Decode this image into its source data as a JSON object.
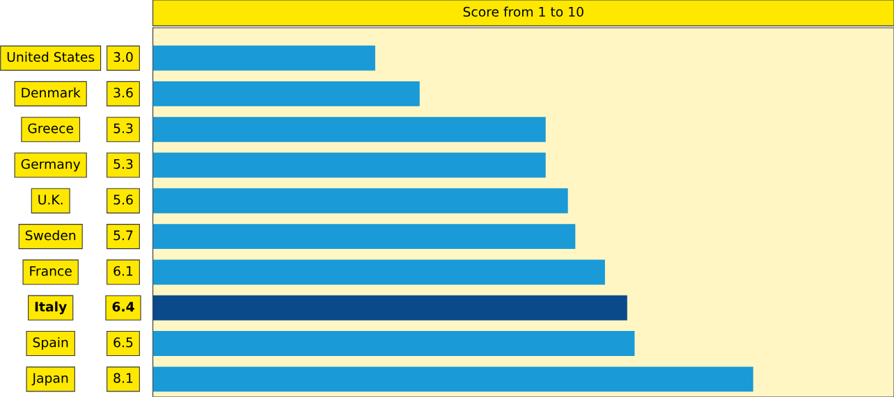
{
  "chart_data": {
    "type": "bar",
    "orientation": "horizontal",
    "title": "Score from 1 to 10",
    "categories": [
      "United States",
      "Denmark",
      "Greece",
      "Germany",
      "U.K.",
      "Sweden",
      "France",
      "Italy",
      "Spain",
      "Japan"
    ],
    "values": [
      3.0,
      3.6,
      5.3,
      5.3,
      5.6,
      5.7,
      6.1,
      6.4,
      6.5,
      8.1
    ],
    "value_labels": [
      "3.0",
      "3.6",
      "5.3",
      "5.3",
      "5.6",
      "5.7",
      "6.1",
      "6.4",
      "6.5",
      "8.1"
    ],
    "colors": [
      "#1a9ad6",
      "#1a9ad6",
      "#1a9ad6",
      "#1a9ad6",
      "#1a9ad6",
      "#1a9ad6",
      "#1a9ad6",
      "#0b4a8a",
      "#1a9ad6",
      "#1a9ad6"
    ],
    "xlim": [
      0,
      10
    ],
    "bands": [
      {
        "axis": "x",
        "from": 0,
        "to": 10,
        "label": null,
        "color": "#fff6c4"
      }
    ],
    "tick_labels": "y"
  }
}
